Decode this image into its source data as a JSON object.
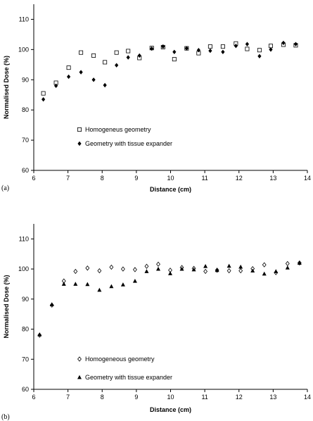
{
  "chart_data": [
    {
      "type": "scatter",
      "panel_label": "(a)",
      "xlabel": "Distance (cm)",
      "ylabel": "Normalised Dose (%)",
      "xlim": [
        6,
        14
      ],
      "ylim": [
        60,
        115
      ],
      "x_ticks": [
        6,
        7,
        8,
        9,
        10,
        11,
        12,
        13,
        14
      ],
      "y_ticks": [
        60,
        70,
        80,
        90,
        100,
        110
      ],
      "grid": false,
      "legend_position": "lower-left",
      "series": [
        {
          "name": "Homogeneus geometry",
          "marker": "open-square",
          "x": [
            6.28,
            6.65,
            7.02,
            7.38,
            7.75,
            8.08,
            8.42,
            8.76,
            9.09,
            9.45,
            9.78,
            10.11,
            10.47,
            10.82,
            11.16,
            11.53,
            11.91,
            12.24,
            12.6,
            12.93,
            13.3,
            13.66
          ],
          "y": [
            85.5,
            89.0,
            94.0,
            99.0,
            98.0,
            95.8,
            99.0,
            99.5,
            97.2,
            100.5,
            100.8,
            96.8,
            100.4,
            98.8,
            101.0,
            101.0,
            102.0,
            100.2,
            99.8,
            101.2,
            101.6,
            101.4
          ]
        },
        {
          "name": "Geometry with tissue expander",
          "marker": "filled-diamond",
          "x": [
            6.28,
            6.65,
            7.02,
            7.38,
            7.75,
            8.08,
            8.42,
            8.76,
            9.09,
            9.45,
            9.78,
            10.11,
            10.47,
            10.82,
            11.16,
            11.53,
            11.91,
            12.24,
            12.6,
            12.93,
            13.3,
            13.66
          ],
          "y": [
            83.5,
            88.0,
            91.0,
            92.5,
            90.0,
            88.2,
            94.8,
            97.4,
            98.0,
            100.3,
            101.0,
            99.2,
            100.4,
            99.8,
            99.6,
            99.2,
            101.2,
            101.8,
            97.8,
            100.0,
            102.2,
            101.8
          ]
        }
      ]
    },
    {
      "type": "scatter",
      "panel_label": "(b)",
      "xlabel": "Distance (cm)",
      "ylabel": "Normalised Dose (%)",
      "xlim": [
        6,
        14
      ],
      "ylim": [
        60,
        115
      ],
      "x_ticks": [
        6,
        7,
        8,
        9,
        10,
        11,
        12,
        13,
        14
      ],
      "y_ticks": [
        60,
        70,
        80,
        90,
        100,
        110
      ],
      "grid": false,
      "legend_position": "lower-left",
      "series": [
        {
          "name": "Homogeneous geometry",
          "marker": "open-diamond",
          "x": [
            6.17,
            6.53,
            6.88,
            7.22,
            7.57,
            7.92,
            8.27,
            8.61,
            8.96,
            9.3,
            9.64,
            9.99,
            10.33,
            10.68,
            11.02,
            11.36,
            11.71,
            12.05,
            12.4,
            12.74,
            13.08,
            13.42,
            13.77
          ],
          "y": [
            78.0,
            88.0,
            96.0,
            99.2,
            100.3,
            99.4,
            100.6,
            100.0,
            99.8,
            100.9,
            101.6,
            99.6,
            100.5,
            100.2,
            99.2,
            99.6,
            99.4,
            99.4,
            100.1,
            101.4,
            98.8,
            101.8,
            102.0
          ]
        },
        {
          "name": "Geometry with tissue expander",
          "marker": "filled-triangle",
          "x": [
            6.17,
            6.53,
            6.88,
            7.22,
            7.57,
            7.92,
            8.27,
            8.61,
            8.96,
            9.3,
            9.64,
            9.99,
            10.33,
            10.68,
            11.02,
            11.36,
            11.71,
            12.05,
            12.4,
            12.74,
            13.08,
            13.42,
            13.77
          ],
          "y": [
            78.2,
            88.2,
            95.0,
            95.0,
            94.9,
            93.0,
            94.2,
            94.8,
            96.0,
            99.2,
            100.0,
            98.5,
            100.0,
            99.8,
            100.9,
            99.6,
            101.0,
            100.7,
            99.4,
            98.4,
            99.2,
            100.4,
            102.0
          ]
        }
      ]
    }
  ]
}
